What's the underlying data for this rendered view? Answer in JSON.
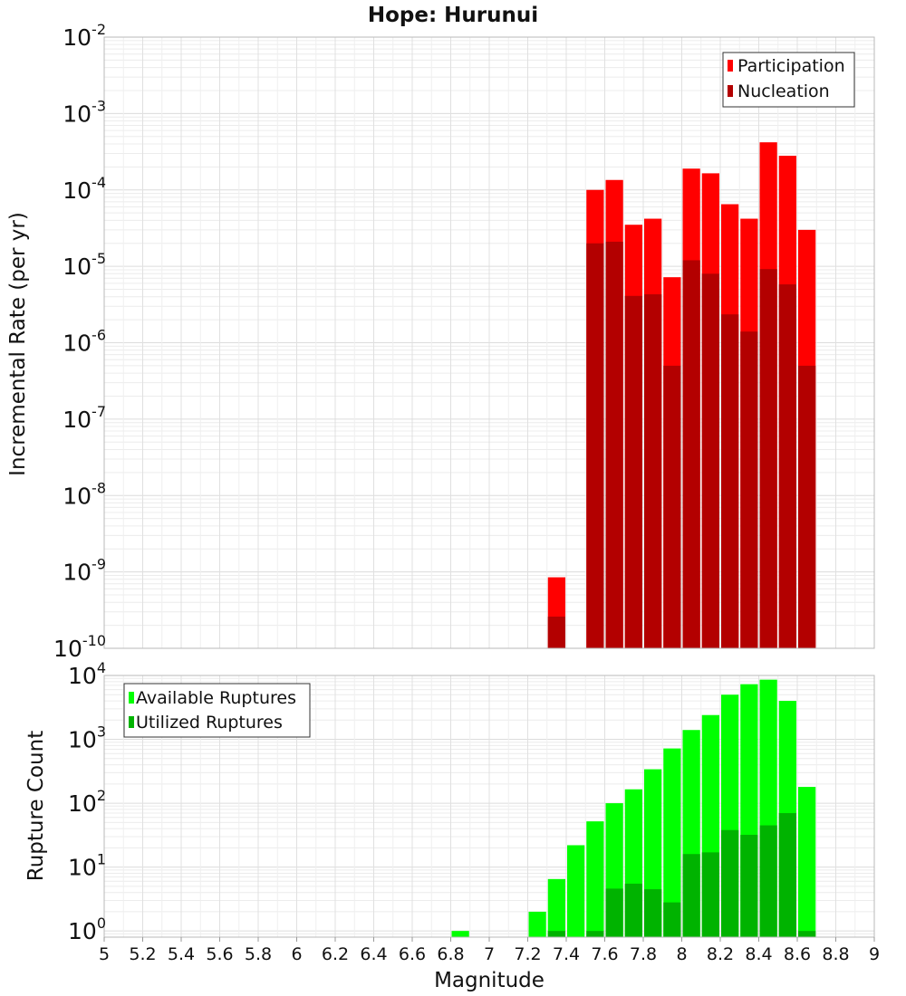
{
  "chart_data": [
    {
      "type": "bar",
      "title": "Hope: Hurunui",
      "xlabel": "",
      "ylabel": "Incremental Rate (per yr)",
      "yscale": "log",
      "ylim": [
        1e-10,
        0.01
      ],
      "xlim": [
        5,
        9
      ],
      "grid": true,
      "legend_position": "top-right",
      "ytick_labels": [
        {
          "base": "10",
          "exp": "-10"
        },
        {
          "base": "10",
          "exp": "-9"
        },
        {
          "base": "10",
          "exp": "-8"
        },
        {
          "base": "10",
          "exp": "-7"
        },
        {
          "base": "10",
          "exp": "-6"
        },
        {
          "base": "10",
          "exp": "-5"
        },
        {
          "base": "10",
          "exp": "-4"
        },
        {
          "base": "10",
          "exp": "-3"
        },
        {
          "base": "10",
          "exp": "-2"
        }
      ],
      "legend": [
        "Participation",
        "Nucleation"
      ],
      "bar_width": 0.1,
      "series": [
        {
          "name": "Participation",
          "color": "#ff0000",
          "x": [
            7.35,
            7.55,
            7.65,
            7.75,
            7.85,
            7.95,
            8.05,
            8.15,
            8.25,
            8.35,
            8.45,
            8.55,
            8.65
          ],
          "values": [
            8.5e-10,
            0.0001,
            0.000135,
            3.5e-05,
            4.2e-05,
            7.2e-06,
            0.00019,
            0.000165,
            6.5e-05,
            4.2e-05,
            0.00042,
            0.00028,
            3e-05
          ]
        },
        {
          "name": "Nucleation",
          "color": "#b30000",
          "x": [
            7.35,
            7.55,
            7.65,
            7.75,
            7.85,
            7.95,
            8.05,
            8.15,
            8.25,
            8.35,
            8.45,
            8.55,
            8.65
          ],
          "values": [
            2.6e-10,
            2e-05,
            2.1e-05,
            4.1e-06,
            4.3e-06,
            5e-07,
            1.2e-05,
            8e-06,
            2.35e-06,
            1.4e-06,
            9.2e-06,
            5.8e-06,
            5e-07
          ]
        }
      ]
    },
    {
      "type": "bar",
      "title": "",
      "xlabel": "Magnitude",
      "ylabel": "Rupture Count",
      "yscale": "log",
      "ylim": [
        0.8,
        10000
      ],
      "xlim": [
        5,
        9
      ],
      "grid": true,
      "legend_position": "top-left",
      "ytick_labels": [
        {
          "base": "10",
          "exp": "0"
        },
        {
          "base": "10",
          "exp": "1"
        },
        {
          "base": "10",
          "exp": "2"
        },
        {
          "base": "10",
          "exp": "3"
        },
        {
          "base": "10",
          "exp": "4"
        }
      ],
      "xtick_labels": [
        "5",
        "5.2",
        "5.4",
        "5.6",
        "5.8",
        "6",
        "6.2",
        "6.4",
        "6.6",
        "6.8",
        "7",
        "7.2",
        "7.4",
        "7.6",
        "7.8",
        "8",
        "8.2",
        "8.4",
        "8.6",
        "8.8",
        "9"
      ],
      "legend": [
        "Available Ruptures",
        "Utilized Ruptures"
      ],
      "bar_width": 0.1,
      "series": [
        {
          "name": "Available Ruptures",
          "color": "#00ff00",
          "x": [
            6.85,
            7.25,
            7.35,
            7.45,
            7.55,
            7.65,
            7.75,
            7.85,
            7.95,
            8.05,
            8.15,
            8.25,
            8.35,
            8.45,
            8.55,
            8.65
          ],
          "values": [
            1,
            2,
            6.5,
            22,
            52,
            100,
            165,
            340,
            720,
            1400,
            2400,
            5000,
            7300,
            8600,
            4000,
            180
          ]
        },
        {
          "name": "Utilized Ruptures",
          "color": "#00b300",
          "x": [
            7.35,
            7.55,
            7.65,
            7.75,
            7.85,
            7.95,
            8.05,
            8.15,
            8.25,
            8.35,
            8.45,
            8.55,
            8.65
          ],
          "values": [
            1,
            1,
            4.6,
            5.5,
            4.5,
            2.8,
            16,
            17,
            38,
            32,
            45,
            70,
            1
          ]
        }
      ]
    }
  ]
}
